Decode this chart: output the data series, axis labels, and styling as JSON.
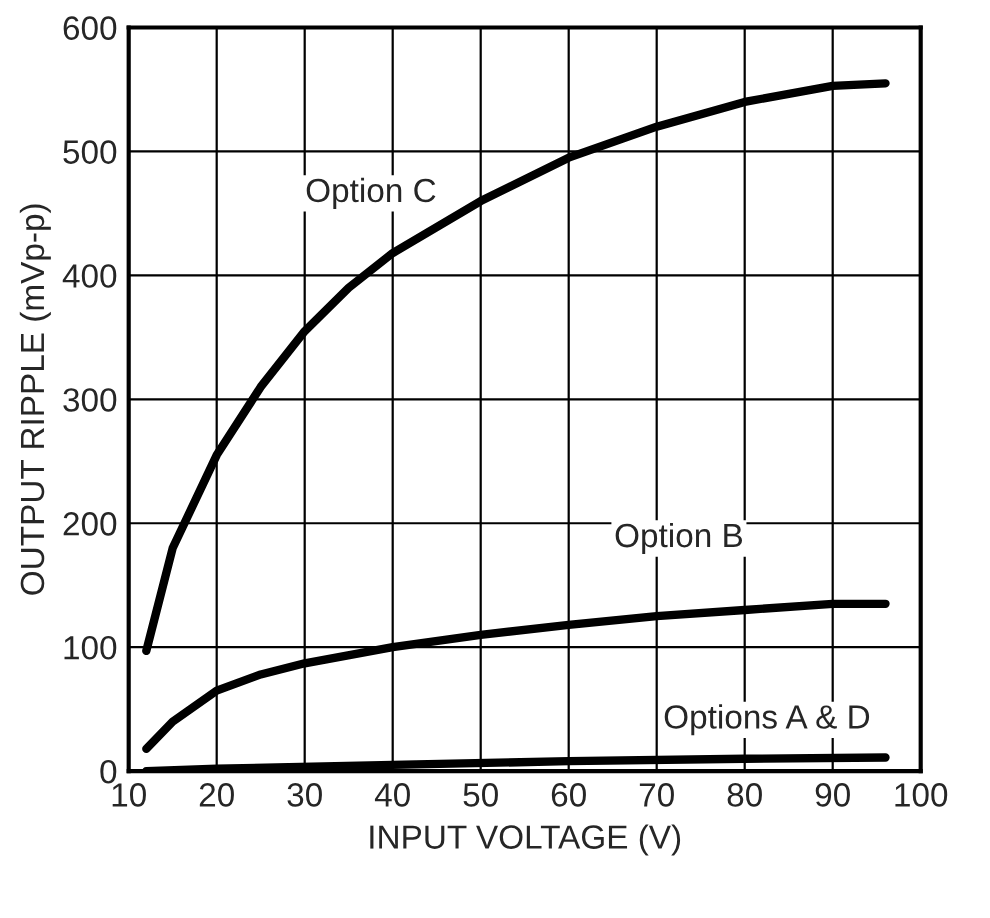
{
  "chart_data": {
    "type": "line",
    "xlabel": "INPUT VOLTAGE (V)",
    "ylabel": "OUTPUT RIPPLE (mVp-p)",
    "xlim": [
      10,
      100
    ],
    "xticks": [
      10,
      20,
      30,
      40,
      50,
      60,
      70,
      80,
      90,
      100
    ],
    "ylim": [
      0,
      600
    ],
    "yticks": [
      0,
      100,
      200,
      300,
      400,
      500,
      600
    ],
    "grid": true,
    "marker": "none",
    "line_style": "solid",
    "series": [
      {
        "name": "Option C",
        "color": "#000000",
        "x": [
          12,
          15,
          20,
          25,
          30,
          35,
          40,
          50,
          60,
          70,
          80,
          90,
          96
        ],
        "values": [
          97,
          180,
          255,
          310,
          355,
          390,
          418,
          460,
          495,
          520,
          540,
          553,
          555
        ]
      },
      {
        "name": "Option B",
        "color": "#000000",
        "x": [
          12,
          15,
          20,
          25,
          30,
          40,
          50,
          60,
          70,
          80,
          90,
          96
        ],
        "values": [
          18,
          40,
          65,
          78,
          87,
          100,
          110,
          118,
          125,
          130,
          135,
          135
        ]
      },
      {
        "name": "Options A & D",
        "color": "#000000",
        "x": [
          12,
          20,
          40,
          60,
          80,
          96
        ],
        "values": [
          0,
          2,
          5,
          8,
          10,
          11
        ]
      }
    ]
  }
}
